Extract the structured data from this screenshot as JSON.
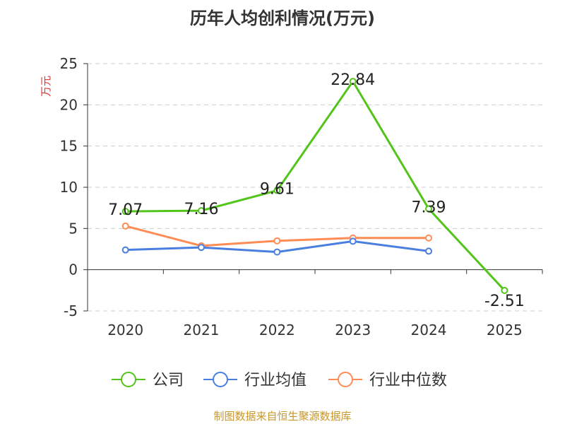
{
  "chart_data": {
    "type": "line",
    "title": "历年人均创利情况(万元)",
    "ylabel": "万元",
    "xlabel": "",
    "categories": [
      "2020",
      "2021",
      "2022",
      "2023",
      "2024",
      "2025"
    ],
    "ylim": [
      -5,
      25
    ],
    "yticks": [
      -5,
      0,
      5,
      10,
      15,
      20,
      25
    ],
    "grid": true,
    "legend_position": "bottom",
    "series": [
      {
        "name": "公司",
        "color": "#52c41a",
        "values": [
          7.07,
          7.16,
          9.61,
          22.84,
          7.39,
          -2.51
        ],
        "labels": [
          "7.07",
          "7.16",
          "9.61",
          "22.84",
          "7.39",
          "-2.51"
        ]
      },
      {
        "name": "行业均值",
        "color": "#4a7fe0",
        "values": [
          2.4,
          2.7,
          2.15,
          3.45,
          2.25,
          null
        ]
      },
      {
        "name": "行业中位数",
        "color": "#ff8c55",
        "values": [
          5.3,
          2.9,
          3.5,
          3.85,
          3.85,
          null
        ]
      }
    ],
    "source": "制图数据来自恒生聚源数据库"
  }
}
